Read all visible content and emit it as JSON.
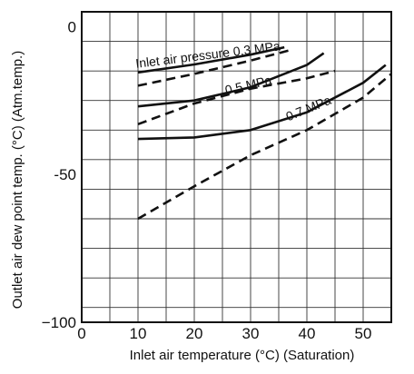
{
  "chart_data": {
    "type": "line",
    "xlabel": "Inlet air temperature (°C) (Saturation)",
    "ylabel": "Outlet air dew point temp. (°C) (Atm.temp.)",
    "xlim": [
      0,
      55
    ],
    "ylim": [
      -100,
      5
    ],
    "x_ticks": [
      "0",
      "10",
      "20",
      "30",
      "40",
      "50"
    ],
    "y_ticks": [
      "0",
      "-50",
      "−100"
    ],
    "grid": true,
    "series": [
      {
        "label_ref": "0.3 MPa",
        "style": "solid",
        "x": [
          10,
          20,
          30,
          36
        ],
        "y": [
          -15.5,
          -12.8,
          -9.5,
          -7
        ]
      },
      {
        "label_ref": "0.3 MPa",
        "style": "dashed",
        "x": [
          10,
          20,
          30,
          37
        ],
        "y": [
          -20,
          -16,
          -11.5,
          -8
        ]
      },
      {
        "label_ref": "0.5 MPa",
        "style": "solid",
        "x": [
          10,
          20,
          30,
          40,
          43
        ],
        "y": [
          -27,
          -25,
          -20.5,
          -13,
          -9
        ]
      },
      {
        "label_ref": "0.5 MPa",
        "style": "dashed",
        "x": [
          10,
          20,
          30,
          40,
          45
        ],
        "y": [
          -33,
          -26,
          -21,
          -17.5,
          -15
        ]
      },
      {
        "label_ref": "0.7 MPa",
        "style": "solid",
        "x": [
          10,
          20,
          30,
          40,
          50,
          54
        ],
        "y": [
          -38,
          -37.5,
          -35,
          -29,
          -19,
          -13
        ]
      },
      {
        "label_ref": "0.7 MPa",
        "style": "dashed",
        "x": [
          10,
          20,
          30,
          40,
          50,
          55
        ],
        "y": [
          -65,
          -54,
          -43.5,
          -35,
          -24,
          -16
        ]
      }
    ],
    "annotations": [
      {
        "text": "Inlet air pressure 0.3 MPa",
        "x": 10,
        "y": -14
      },
      {
        "text": "0.5 MPa",
        "x": 26,
        "y": -23
      },
      {
        "text": "0.7 MPa",
        "x": 37,
        "y": -32
      }
    ]
  },
  "colors": {
    "line": "#111111",
    "grid": "#333333",
    "background": "#ffffff"
  }
}
